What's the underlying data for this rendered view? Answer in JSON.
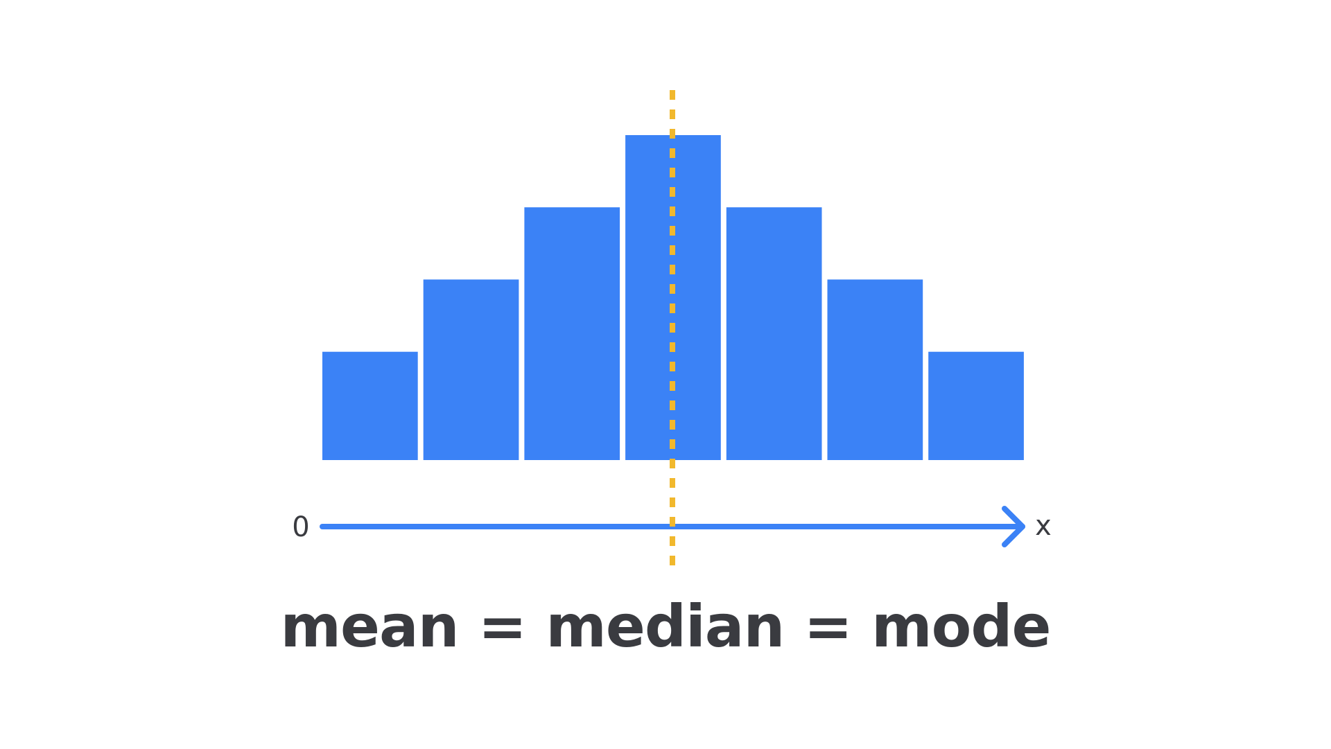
{
  "chart_data": {
    "type": "bar",
    "title": "",
    "categories": [
      "",
      "",
      "",
      "",
      "",
      "",
      ""
    ],
    "values": [
      1.5,
      2.5,
      3.5,
      4.5,
      3.5,
      2.5,
      1.5
    ],
    "origin_label": "0",
    "x_axis_label": "x",
    "ylim": [
      0,
      4.5
    ],
    "grid": false,
    "bar_color": "#3b82f6",
    "axis_color": "#3b82f6",
    "center_line": {
      "style": "dashed",
      "color": "#f1b82d",
      "position": "center"
    }
  },
  "formula_text": "mean = median = mode",
  "colors": {
    "text": "#3a3b40",
    "background": "#ffffff"
  }
}
